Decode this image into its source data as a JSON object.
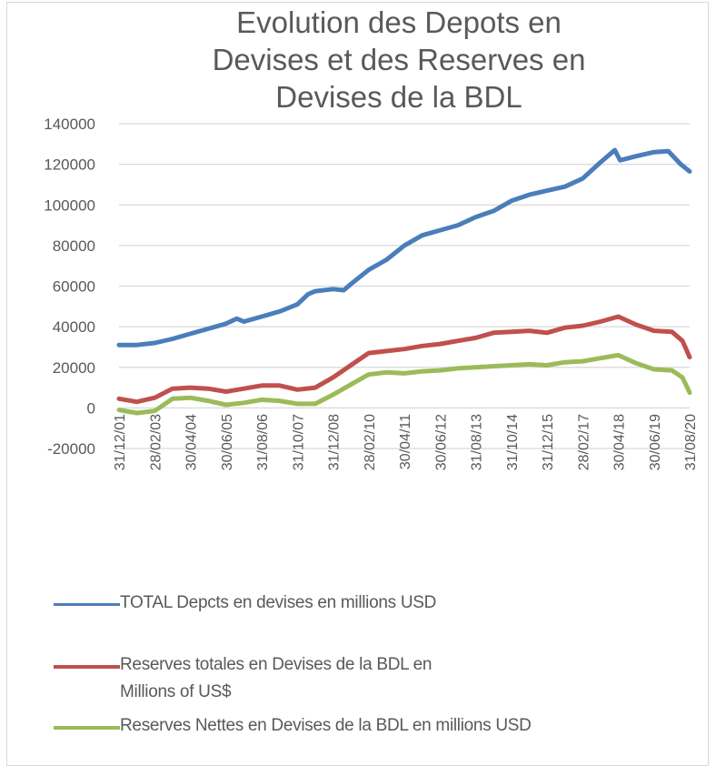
{
  "chart_data": {
    "type": "line",
    "title": "Evolution des Depots en Devises et des Reserves en Devises de la BDL",
    "title_lines": [
      "Evolution des Depots en",
      "Devises et des Reserves en",
      "Devises de la BDL"
    ],
    "xlabel": "",
    "ylabel": "",
    "ylim": [
      -20000,
      140000
    ],
    "yticks": [
      140000,
      120000,
      100000,
      80000,
      60000,
      40000,
      20000,
      0,
      -20000
    ],
    "ytick_labels": [
      "140000",
      "120000",
      "100000",
      "80000",
      "60000",
      "40000",
      "20000",
      "0",
      "-20000"
    ],
    "grid": true,
    "legend_position": "bottom",
    "categories": [
      "31/12/01",
      "28/02/03",
      "30/04/04",
      "30/06/05",
      "31/08/06",
      "31/10/07",
      "31/12/08",
      "28/02/10",
      "30/04/11",
      "30/06/12",
      "31/08/13",
      "31/10/14",
      "31/12/15",
      "28/02/17",
      "30/04/18",
      "30/06/19",
      "31/08/20"
    ],
    "x_positions": [
      0,
      2,
      4,
      6,
      8,
      10,
      12,
      14,
      16,
      18,
      20,
      22,
      24,
      26,
      28,
      30,
      32
    ],
    "x_range": [
      0,
      32
    ],
    "series": [
      {
        "name": "TOTAL Depots en devises en millions USD",
        "color": "#4a7ebb",
        "x": [
          0,
          1,
          2,
          3,
          4,
          5,
          6,
          6.6,
          7,
          8,
          9,
          10,
          10.6,
          11,
          12,
          12.6,
          13,
          14,
          15,
          16,
          17,
          18,
          19,
          20,
          21,
          22,
          23,
          24,
          25,
          26,
          27,
          27.8,
          28.1,
          29,
          30,
          30.8,
          31.5,
          32
        ],
        "values": [
          31000,
          31000,
          32000,
          34000,
          36500,
          39000,
          41500,
          44000,
          42500,
          45000,
          47500,
          51000,
          56000,
          57500,
          58500,
          58000,
          61000,
          68000,
          73000,
          80000,
          85000,
          87500,
          90000,
          94000,
          97000,
          102000,
          105000,
          107000,
          109000,
          113000,
          121000,
          127000,
          122000,
          124000,
          126000,
          126500,
          120000,
          116500
        ]
      },
      {
        "name": "Reserves totales en Devises de la BDL en Millions of US$",
        "color": "#c0504d",
        "x": [
          0,
          1,
          2,
          3,
          4,
          5,
          6,
          7,
          8,
          9,
          10,
          11,
          12,
          13,
          14,
          15,
          16,
          17,
          18,
          19,
          20,
          21,
          22,
          23,
          24,
          25,
          26,
          27,
          28,
          29,
          30,
          31,
          31.6,
          32
        ],
        "values": [
          4500,
          3000,
          5000,
          9500,
          10000,
          9500,
          8000,
          9500,
          11000,
          11000,
          9000,
          10000,
          15000,
          21000,
          27000,
          28000,
          29000,
          30500,
          31500,
          33000,
          34500,
          37000,
          37500,
          38000,
          37000,
          39500,
          40500,
          42500,
          45000,
          41000,
          38000,
          37500,
          33000,
          25000
        ]
      },
      {
        "name": "Reserves Nettes en Devises de la BDL en millions USD",
        "color": "#9bbb59",
        "x": [
          0,
          1,
          2,
          3,
          4,
          5,
          6,
          7,
          8,
          9,
          10,
          11,
          12,
          13,
          14,
          15,
          16,
          17,
          18,
          19,
          20,
          21,
          22,
          23,
          24,
          25,
          26,
          27,
          28,
          29,
          30,
          31,
          31.6,
          32
        ],
        "values": [
          -1000,
          -2500,
          -1500,
          4500,
          5000,
          3500,
          1500,
          2500,
          4000,
          3500,
          2000,
          2000,
          6500,
          11500,
          16500,
          17500,
          17000,
          18000,
          18500,
          19500,
          20000,
          20500,
          21000,
          21500,
          21000,
          22500,
          23000,
          24500,
          26000,
          22000,
          19000,
          18500,
          15000,
          7500
        ]
      }
    ]
  },
  "legend": {
    "items": [
      {
        "label": "TOTAL Depcts en devises en millions USD",
        "color": "#4a7ebb"
      },
      {
        "label": "Reserves totales en Devises de la BDL en Millions of US$",
        "color": "#c0504d"
      },
      {
        "label": "Reserves Nettes en Devises de la BDL en millions USD",
        "color": "#9bbb59"
      }
    ]
  },
  "colors": {
    "gridline": "#d9d9d9",
    "text": "#595959",
    "frame": "#d9d9d9"
  }
}
